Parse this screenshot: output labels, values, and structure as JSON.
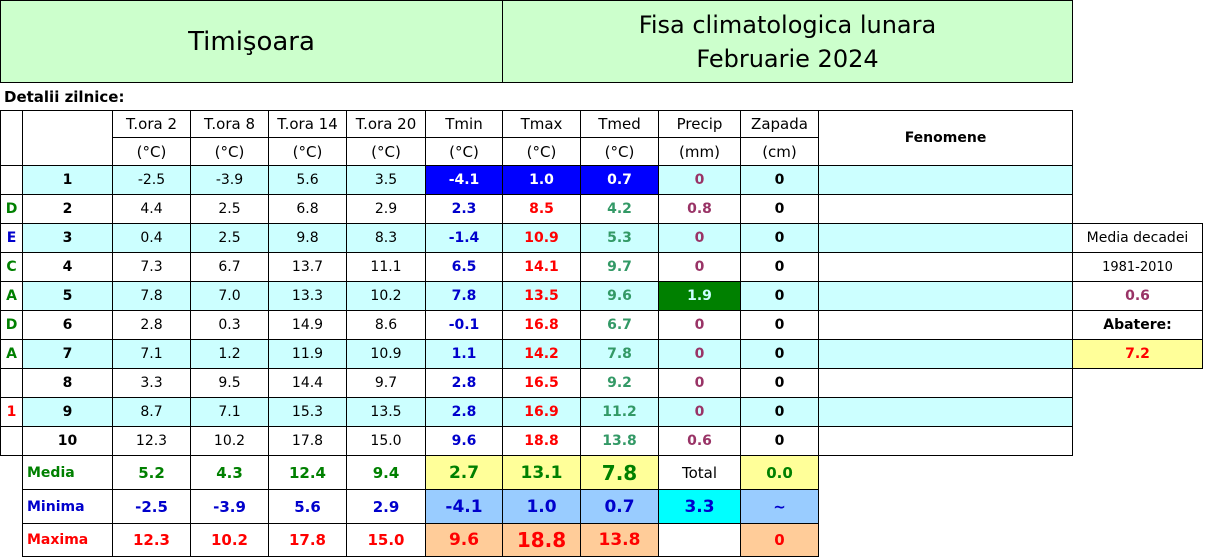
{
  "header": {
    "station": "Timişoara",
    "title": "Fisa climatologica lunara",
    "period": "Februarie 2024"
  },
  "section_label": "Detalii zilnice:",
  "table": {
    "columns": [
      [
        "T.ora 2",
        "(°C)"
      ],
      [
        "T.ora 8",
        "(°C)"
      ],
      [
        "T.ora 14",
        "(°C)"
      ],
      [
        "T.ora 20",
        "(°C)"
      ],
      [
        "Tmin",
        "(°C)"
      ],
      [
        "Tmax",
        "(°C)"
      ],
      [
        "Tmed",
        "(°C)"
      ],
      [
        "Precip",
        "(mm)"
      ],
      [
        "Zapada",
        "(cm)"
      ]
    ],
    "fenomene": "Fenomene",
    "rows": [
      {
        "day": "1",
        "values": [
          "-2.5",
          "-3.9",
          "5.6",
          "3.5",
          "-4.1",
          "1.0",
          "0.7",
          "0",
          "0"
        ]
      },
      {
        "side": "D",
        "day": "2",
        "values": [
          "4.4",
          "2.5",
          "6.8",
          "2.9",
          "2.3",
          "8.5",
          "4.2",
          "0.8",
          "0"
        ]
      },
      {
        "side": "E",
        "day": "3",
        "values": [
          "0.4",
          "2.5",
          "9.8",
          "8.3",
          "-1.4",
          "10.9",
          "5.3",
          "0",
          "0"
        ]
      },
      {
        "side": "C",
        "day": "4",
        "values": [
          "7.3",
          "6.7",
          "13.7",
          "11.1",
          "6.5",
          "14.1",
          "9.7",
          "0",
          "0"
        ]
      },
      {
        "side": "A",
        "day": "5",
        "values": [
          "7.8",
          "7.0",
          "13.3",
          "10.2",
          "7.8",
          "13.5",
          "9.6",
          "1.9",
          "0"
        ]
      },
      {
        "side": "D",
        "day": "6",
        "values": [
          "2.8",
          "0.3",
          "14.9",
          "8.6",
          "-0.1",
          "16.8",
          "6.7",
          "0",
          "0"
        ]
      },
      {
        "side": "A",
        "day": "7",
        "values": [
          "7.1",
          "1.2",
          "11.9",
          "10.9",
          "1.1",
          "14.2",
          "7.8",
          "0",
          "0"
        ]
      },
      {
        "day": "8",
        "values": [
          "3.3",
          "9.5",
          "14.4",
          "9.7",
          "2.8",
          "16.5",
          "9.2",
          "0",
          "0"
        ]
      },
      {
        "side": "1",
        "day": "9",
        "values": [
          "8.7",
          "7.1",
          "15.3",
          "13.5",
          "2.8",
          "16.9",
          "11.2",
          "0",
          "0"
        ]
      },
      {
        "day": "10",
        "values": [
          "12.3",
          "10.2",
          "17.8",
          "15.0",
          "9.6",
          "18.8",
          "13.8",
          "0.6",
          "0"
        ]
      }
    ],
    "summary": [
      {
        "label": "Media",
        "values": [
          "5.2",
          "4.3",
          "12.4",
          "9.4",
          "2.7",
          "13.1",
          "7.8",
          "Total",
          "0.0"
        ]
      },
      {
        "label": "Minima",
        "values": [
          "-2.5",
          "-3.9",
          "5.6",
          "2.9",
          "-4.1",
          "1.0",
          "0.7",
          "3.3",
          "~"
        ]
      },
      {
        "label": "Maxima",
        "values": [
          "12.3",
          "10.2",
          "17.8",
          "15.0",
          "9.6",
          "18.8",
          "13.8",
          null,
          "0"
        ]
      }
    ]
  },
  "side_panel": [
    "Media decadei",
    "1981-2010",
    "0.6",
    "Abatere:",
    "7.2"
  ]
}
